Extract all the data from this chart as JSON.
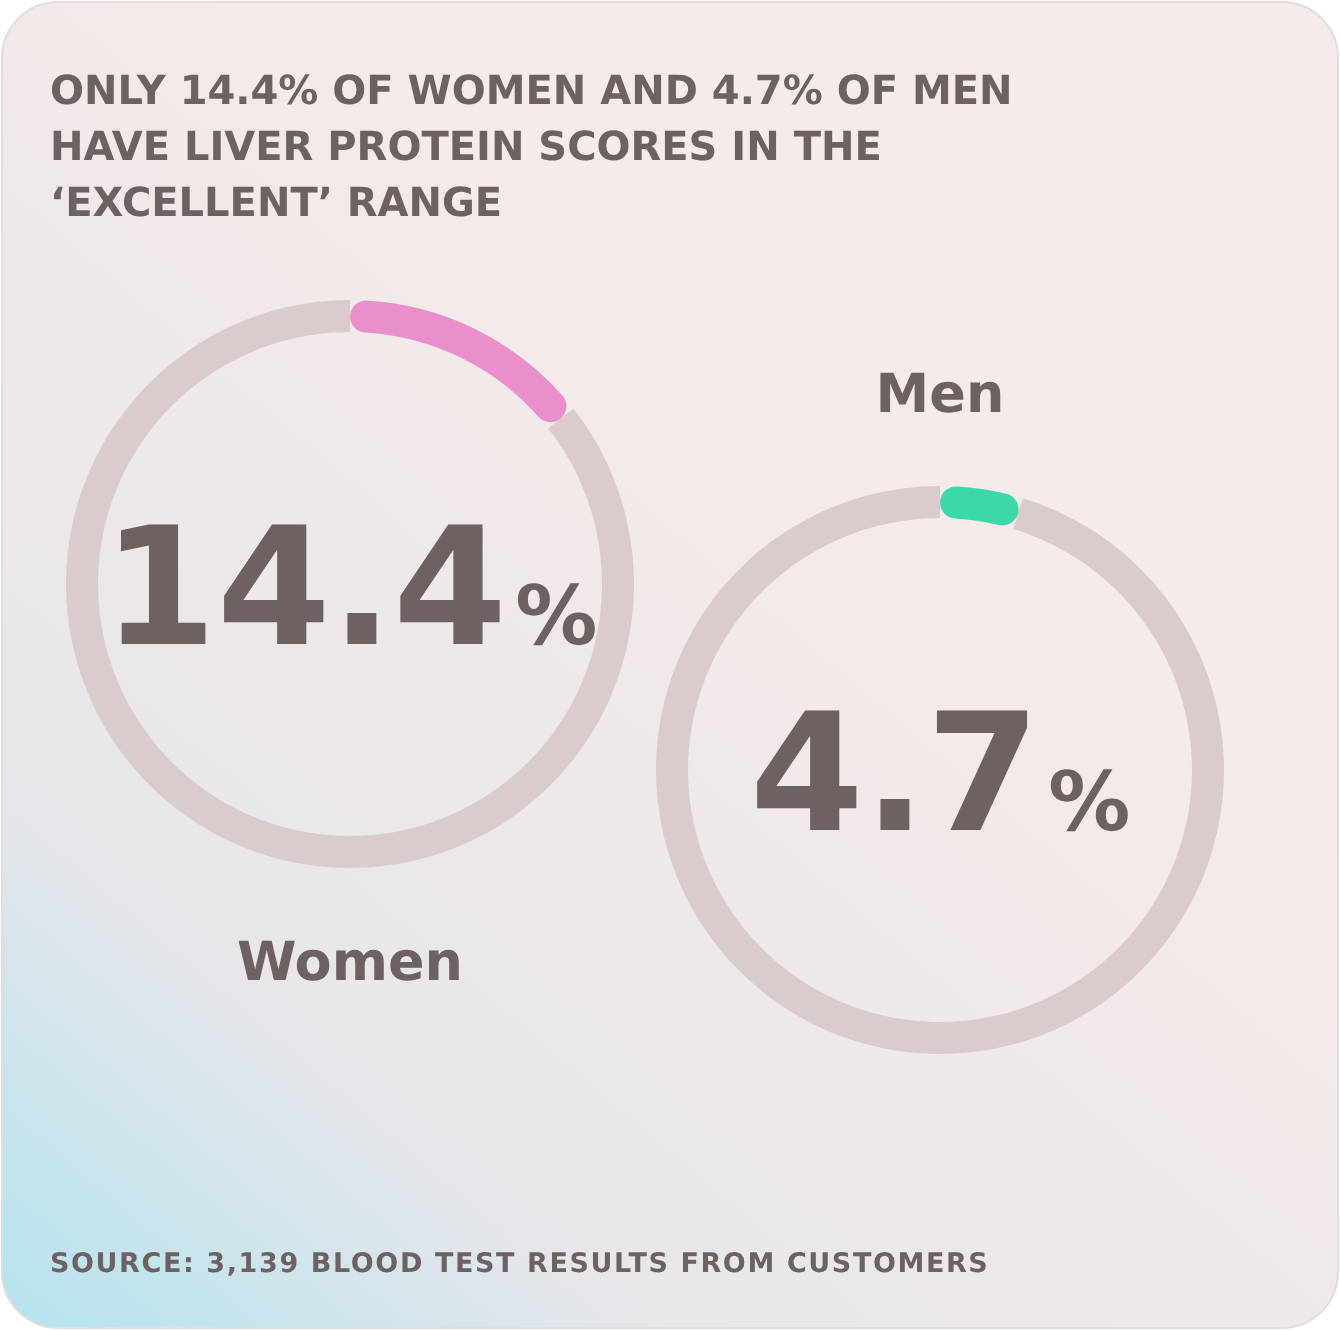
{
  "chart_data": [
    {
      "type": "donut",
      "title": "Women",
      "annotations": [
        "14.4%",
        "ONLY 14.4% OF WOMEN AND 4.7% OF MEN HAVE LIVER PROTEIN SCORES IN THE ‘EXCELLENT’ RANGE"
      ],
      "categories": [
        null,
        null
      ],
      "values": [
        14.4,
        85.6
      ],
      "colors": [
        "#ea8fcb",
        "#dacbcd"
      ]
    },
    {
      "type": "donut",
      "title": "Men",
      "annotations": [
        "4.7%",
        "SOURCE: 3,139 BLOOD TEST RESULTS FROM CUSTOMERS"
      ],
      "categories": [
        null,
        null
      ],
      "values": [
        4.7,
        95.3
      ],
      "colors": [
        "#3dd8a9",
        "#dacbcd"
      ]
    }
  ]
}
